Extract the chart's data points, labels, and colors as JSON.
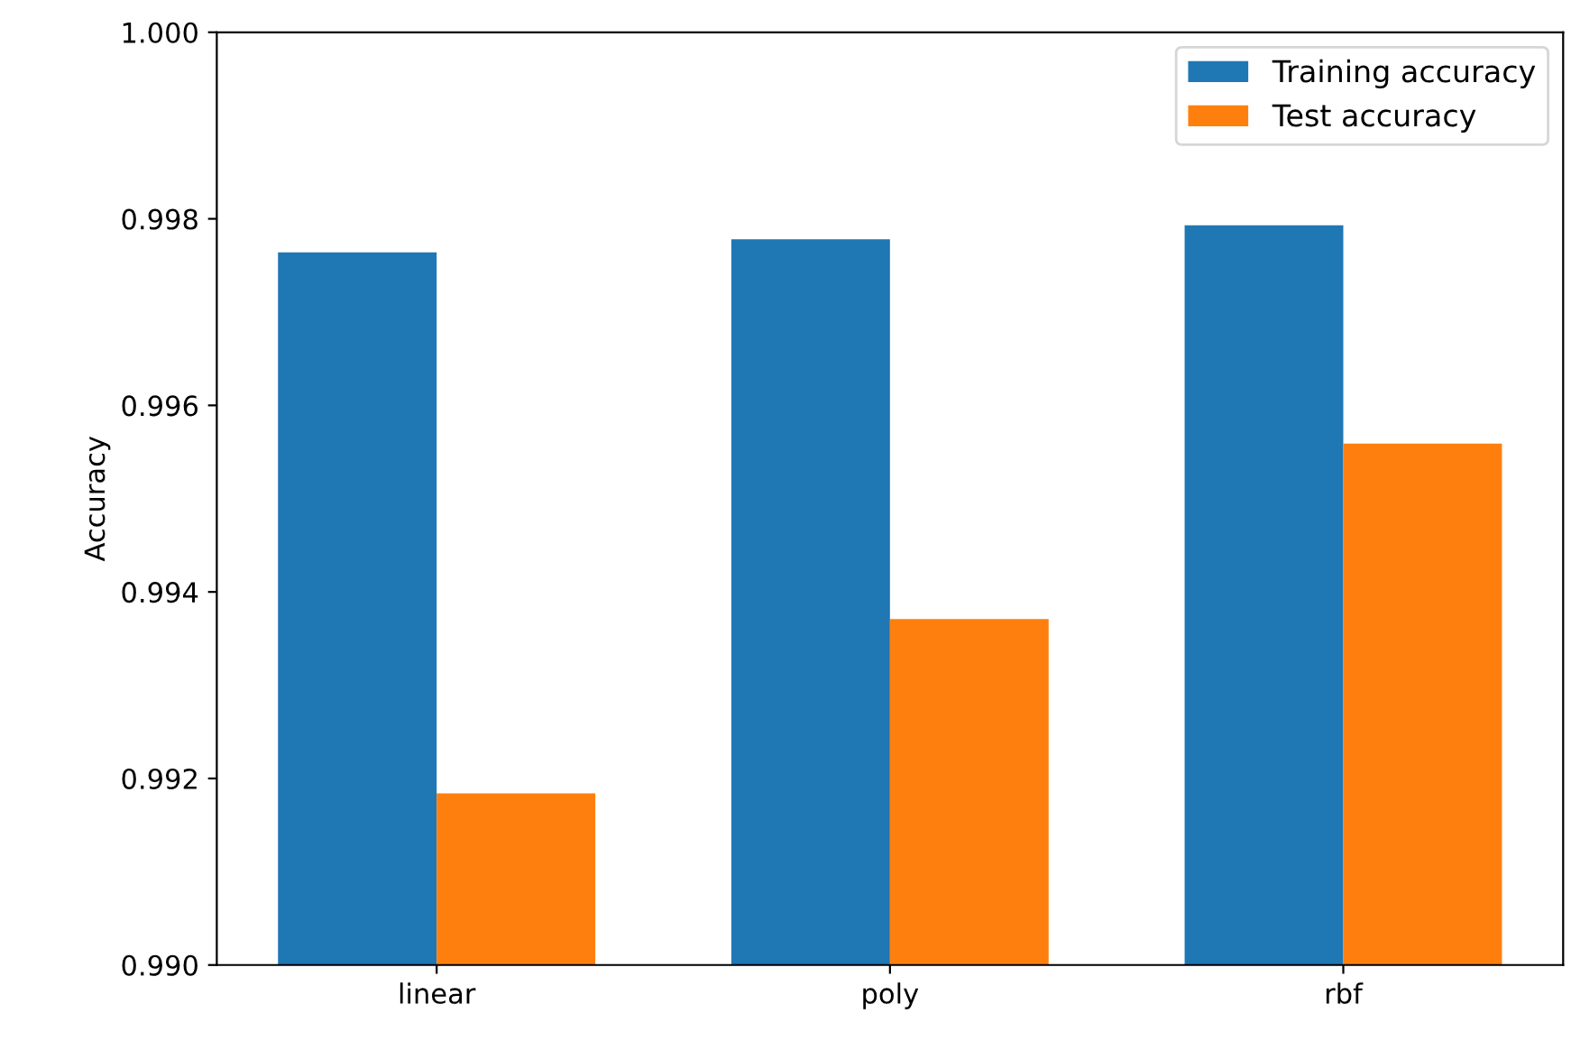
{
  "chart_data": {
    "type": "bar",
    "ylabel": "Accuracy",
    "categories": [
      "linear",
      "poly",
      "rbf"
    ],
    "series": [
      {
        "name": "Training accuracy",
        "color": "#1f77b4",
        "values": [
          0.99764,
          0.99778,
          0.99793
        ]
      },
      {
        "name": "Test accuracy",
        "color": "#ff7f0e",
        "values": [
          0.99184,
          0.99371,
          0.99559
        ]
      }
    ],
    "ylim": [
      0.99,
      1.0
    ],
    "yticks": [
      {
        "value": 0.99,
        "label": "0.990"
      },
      {
        "value": 0.992,
        "label": "0.992"
      },
      {
        "value": 0.994,
        "label": "0.994"
      },
      {
        "value": 0.996,
        "label": "0.996"
      },
      {
        "value": 0.998,
        "label": "0.998"
      },
      {
        "value": 1.0,
        "label": "1.000"
      }
    ],
    "grid": false,
    "legend": "top right"
  }
}
